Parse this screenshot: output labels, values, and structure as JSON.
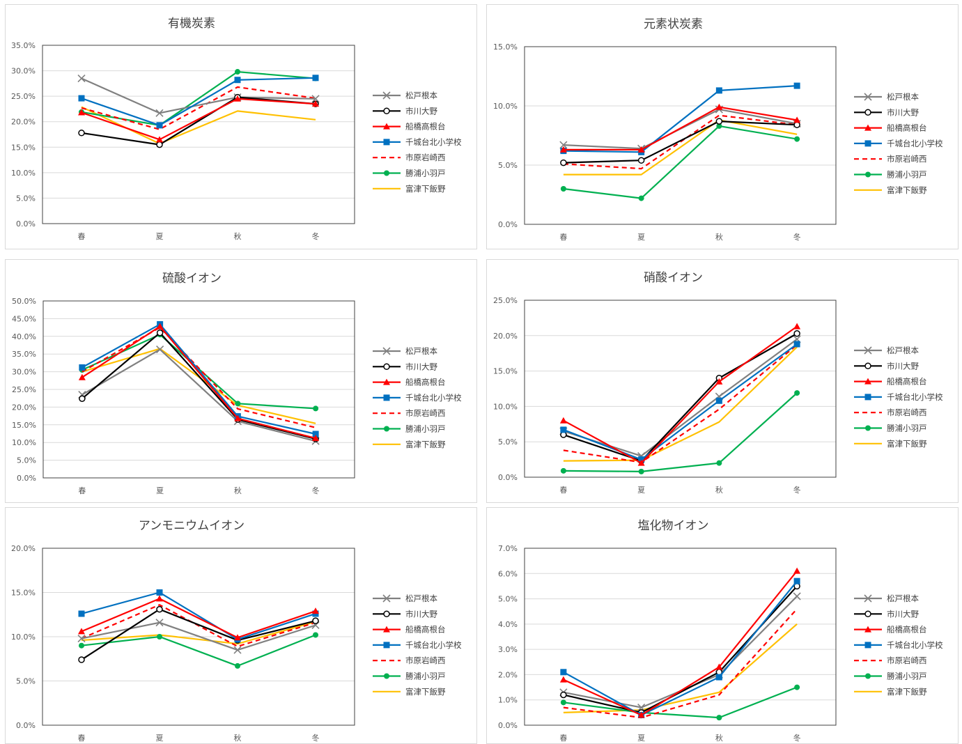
{
  "legend": {
    "series": [
      {
        "name": "松戸根本",
        "color": "#808080",
        "marker": "x",
        "dash": false
      },
      {
        "name": "市川大野",
        "color": "#000000",
        "marker": "circle",
        "dash": false
      },
      {
        "name": "船橋高根台",
        "color": "#ff0000",
        "marker": "triangle",
        "dash": false
      },
      {
        "name": "千城台北小学校",
        "color": "#0070c0",
        "marker": "square",
        "dash": false
      },
      {
        "name": "市原岩崎西",
        "color": "#ff0000",
        "marker": "none",
        "dash": true
      },
      {
        "name": "勝浦小羽戸",
        "color": "#00b050",
        "marker": "dot",
        "dash": false
      },
      {
        "name": "富津下飯野",
        "color": "#ffc000",
        "marker": "none",
        "dash": false
      }
    ]
  },
  "chart_data": [
    {
      "type": "line",
      "title": "有機炭素",
      "categories": [
        "春",
        "夏",
        "秋",
        "冬"
      ],
      "ylim": [
        0,
        35
      ],
      "yticks": [
        "0.0%",
        "5.0%",
        "10.0%",
        "15.0%",
        "20.0%",
        "25.0%",
        "30.0%",
        "35.0%"
      ],
      "series": [
        {
          "name": "松戸根本",
          "values": [
            28.5,
            21.7,
            24.8,
            24.5
          ]
        },
        {
          "name": "市川大野",
          "values": [
            17.8,
            15.5,
            24.8,
            23.5
          ]
        },
        {
          "name": "船橋高根台",
          "values": [
            21.8,
            16.5,
            24.5,
            23.5
          ]
        },
        {
          "name": "千城台北小学校",
          "values": [
            24.6,
            19.3,
            28.2,
            28.6
          ]
        },
        {
          "name": "市原岩崎西",
          "values": [
            22.7,
            18.5,
            26.8,
            24.6
          ]
        },
        {
          "name": "勝浦小羽戸",
          "values": [
            21.9,
            19.3,
            29.8,
            28.5
          ]
        },
        {
          "name": "富津下飯野",
          "values": [
            22.9,
            15.7,
            22.1,
            20.4
          ]
        }
      ]
    },
    {
      "type": "line",
      "title": "元素状炭素",
      "categories": [
        "春",
        "夏",
        "秋",
        "冬"
      ],
      "ylim": [
        0,
        15
      ],
      "yticks": [
        "0.0%",
        "5.0%",
        "10.0%",
        "15.0%"
      ],
      "series": [
        {
          "name": "松戸根本",
          "values": [
            6.7,
            6.4,
            9.7,
            8.5
          ]
        },
        {
          "name": "市川大野",
          "values": [
            5.2,
            5.4,
            8.7,
            8.4
          ]
        },
        {
          "name": "船橋高根台",
          "values": [
            6.3,
            6.3,
            9.9,
            8.8
          ]
        },
        {
          "name": "千城台北小学校",
          "values": [
            6.2,
            6.1,
            11.3,
            11.7
          ]
        },
        {
          "name": "市原岩崎西",
          "values": [
            5.1,
            4.7,
            9.2,
            8.4
          ]
        },
        {
          "name": "勝浦小羽戸",
          "values": [
            3.0,
            2.2,
            8.3,
            7.2
          ]
        },
        {
          "name": "富津下飯野",
          "values": [
            4.2,
            4.2,
            8.8,
            7.6
          ]
        }
      ]
    },
    {
      "type": "line",
      "title": "硫酸イオン",
      "categories": [
        "春",
        "夏",
        "秋",
        "冬"
      ],
      "ylim": [
        0,
        50
      ],
      "yticks": [
        "0.0%",
        "5.0%",
        "10.0%",
        "15.0%",
        "20.0%",
        "25.0%",
        "30.0%",
        "35.0%",
        "40.0%",
        "45.0%",
        "50.0%"
      ],
      "series": [
        {
          "name": "松戸根本",
          "values": [
            23.5,
            36.3,
            16.0,
            10.4
          ]
        },
        {
          "name": "市川大野",
          "values": [
            22.4,
            41.0,
            16.5,
            11.0
          ]
        },
        {
          "name": "船橋高根台",
          "values": [
            28.4,
            42.8,
            16.8,
            11.2
          ]
        },
        {
          "name": "千城台北小学校",
          "values": [
            31.2,
            43.4,
            17.4,
            12.4
          ]
        },
        {
          "name": "市原岩崎西",
          "values": [
            30.0,
            42.5,
            19.5,
            14.2
          ]
        },
        {
          "name": "勝浦小羽戸",
          "values": [
            30.5,
            40.5,
            21.0,
            19.6
          ]
        },
        {
          "name": "富津下飯野",
          "values": [
            30.0,
            36.5,
            20.5,
            15.4
          ]
        }
      ]
    },
    {
      "type": "line",
      "title": "硝酸イオン",
      "categories": [
        "春",
        "夏",
        "秋",
        "冬"
      ],
      "ylim": [
        0,
        25
      ],
      "yticks": [
        "0.0%",
        "5.0%",
        "10.0%",
        "15.0%",
        "20.0%",
        "25.0%"
      ],
      "series": [
        {
          "name": "松戸根本",
          "values": [
            6.5,
            3.0,
            11.4,
            19.5
          ]
        },
        {
          "name": "市川大野",
          "values": [
            6.0,
            2.3,
            14.0,
            20.3
          ]
        },
        {
          "name": "船橋高根台",
          "values": [
            8.0,
            2.0,
            13.5,
            21.3
          ]
        },
        {
          "name": "千城台北小学校",
          "values": [
            6.7,
            2.5,
            10.8,
            18.8
          ]
        },
        {
          "name": "市原岩崎西",
          "values": [
            3.8,
            2.1,
            9.6,
            18.7
          ]
        },
        {
          "name": "勝浦小羽戸",
          "values": [
            0.9,
            0.8,
            2.0,
            11.9
          ]
        },
        {
          "name": "富津下飯野",
          "values": [
            2.3,
            2.4,
            7.8,
            18.4
          ]
        }
      ]
    },
    {
      "type": "line",
      "title": "アンモニウムイオン",
      "categories": [
        "春",
        "夏",
        "秋",
        "冬"
      ],
      "ylim": [
        0,
        20
      ],
      "yticks": [
        "0.0%",
        "5.0%",
        "10.0%",
        "15.0%",
        "20.0%"
      ],
      "series": [
        {
          "name": "松戸根本",
          "values": [
            9.8,
            11.6,
            8.5,
            11.3
          ]
        },
        {
          "name": "市川大野",
          "values": [
            7.4,
            13.1,
            9.6,
            11.8
          ]
        },
        {
          "name": "船橋高根台",
          "values": [
            10.6,
            14.3,
            9.9,
            12.9
          ]
        },
        {
          "name": "千城台北小学校",
          "values": [
            12.6,
            15.0,
            9.7,
            12.6
          ]
        },
        {
          "name": "市原岩崎西",
          "values": [
            9.8,
            13.6,
            8.9,
            11.6
          ]
        },
        {
          "name": "勝浦小羽戸",
          "values": [
            9.0,
            10.0,
            6.7,
            10.2
          ]
        },
        {
          "name": "富津下飯野",
          "values": [
            9.6,
            10.2,
            9.2,
            11.7
          ]
        }
      ]
    },
    {
      "type": "line",
      "title": "塩化物イオン",
      "categories": [
        "春",
        "夏",
        "秋",
        "冬"
      ],
      "ylim": [
        0,
        7
      ],
      "yticks": [
        "0.0%",
        "1.0%",
        "2.0%",
        "3.0%",
        "4.0%",
        "5.0%",
        "6.0%",
        "7.0%"
      ],
      "series": [
        {
          "name": "松戸根本",
          "values": [
            1.3,
            0.7,
            2.0,
            5.1
          ]
        },
        {
          "name": "市川大野",
          "values": [
            1.2,
            0.5,
            2.1,
            5.5
          ]
        },
        {
          "name": "船橋高根台",
          "values": [
            1.8,
            0.4,
            2.3,
            6.1
          ]
        },
        {
          "name": "千城台北小学校",
          "values": [
            2.1,
            0.4,
            1.9,
            5.7
          ]
        },
        {
          "name": "市原岩崎西",
          "values": [
            0.7,
            0.3,
            1.2,
            4.6
          ]
        },
        {
          "name": "勝浦小羽戸",
          "values": [
            0.9,
            0.5,
            0.3,
            1.5
          ]
        },
        {
          "name": "富津下飯野",
          "values": [
            0.5,
            0.6,
            1.3,
            4.0
          ]
        }
      ]
    }
  ]
}
